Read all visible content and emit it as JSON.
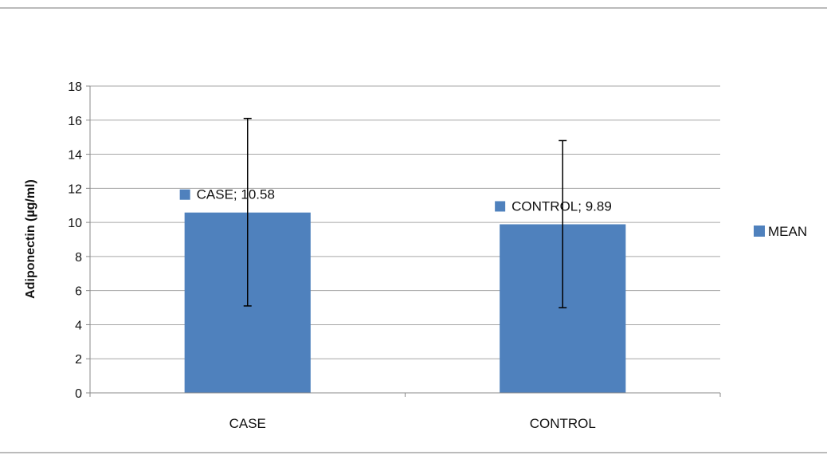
{
  "chart_data": {
    "type": "bar",
    "categories": [
      "CASE",
      "CONTROL"
    ],
    "series": [
      {
        "name": "MEAN",
        "values": [
          10.58,
          9.89
        ],
        "error_low": [
          5.1,
          5.0
        ],
        "error_high": [
          16.1,
          14.8
        ]
      }
    ],
    "data_labels": [
      "CASE; 10.58",
      "CONTROL; 9.89"
    ],
    "ylabel": "Adiponectin (µg/ml)",
    "xlabel": "",
    "ylim": [
      0,
      18
    ],
    "yticks": [
      0,
      2,
      4,
      6,
      8,
      10,
      12,
      14,
      16,
      18
    ],
    "grid": true,
    "legend_position": "right",
    "colors": {
      "bar": "#4f81bd",
      "grid": "#a6a6a6",
      "axis": "#888888",
      "error": "#000000"
    }
  }
}
